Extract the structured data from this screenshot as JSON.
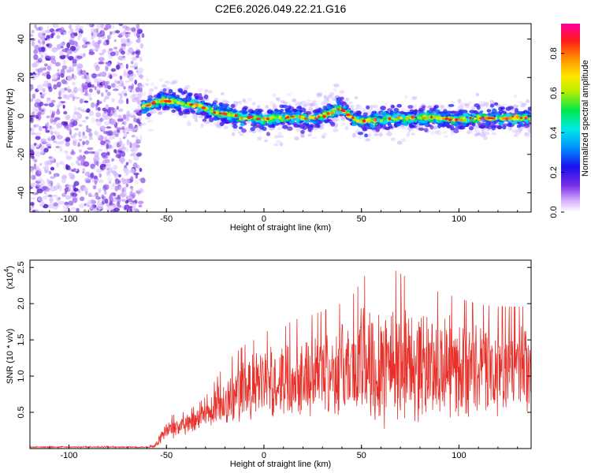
{
  "title": "C2E6.2026.049.22.21.G16",
  "chart_data": [
    {
      "type": "heatmap",
      "xlabel": "Height of straight line (km)",
      "ylabel": "Frequency (Hz)",
      "xlim": [
        -120,
        137
      ],
      "ylim": [
        -50,
        48
      ],
      "xticks": [
        -100,
        -50,
        0,
        50,
        100
      ],
      "xtick_labels": [
        "-100",
        "-50",
        "0",
        "50",
        "100"
      ],
      "yticks": [
        -40,
        -20,
        0,
        20,
        40
      ],
      "ytick_labels": [
        "-40",
        "-20",
        "0",
        "20",
        "40"
      ],
      "noise_region_x": [
        -120,
        -62
      ],
      "ridge": {
        "x": [
          -62,
          -55,
          -50,
          -45,
          -40,
          -35,
          -30,
          -25,
          -20,
          -15,
          -10,
          -5,
          0,
          5,
          10,
          15,
          20,
          25,
          30,
          35,
          38,
          42,
          45,
          50,
          55,
          60,
          70,
          80,
          90,
          100,
          110,
          120,
          130,
          137
        ],
        "y": [
          5,
          7,
          8,
          7,
          6,
          6,
          4,
          2,
          1,
          0,
          -1,
          -1,
          -2,
          -1,
          -1,
          0,
          -1,
          -1,
          0,
          2,
          4,
          2,
          -1,
          -3,
          -2,
          -2,
          -1,
          -1,
          -1,
          -2,
          -1,
          -1,
          -1,
          -1
        ]
      },
      "colorbar": {
        "label": "Normalized spectral amplitude",
        "ticks": [
          0.0,
          0.2,
          0.4,
          0.6,
          0.8
        ],
        "tick_labels": [
          "0.0",
          "0.2",
          "0.4",
          "0.6",
          "0.8"
        ],
        "range": [
          0,
          0.95
        ]
      }
    },
    {
      "type": "line",
      "xlabel": "Height of straight line (km)",
      "ylabel": "SNR (10 * v/v)",
      "scale_label": "(x10",
      "scale_exponent": "4",
      "scale_close": ")",
      "xlim": [
        -120,
        137
      ],
      "ylim": [
        0,
        2.6
      ],
      "xticks": [
        -100,
        -50,
        0,
        50,
        100
      ],
      "xtick_labels": [
        "-100",
        "-50",
        "0",
        "50",
        "100"
      ],
      "yticks": [
        0.5,
        1.0,
        1.5,
        2.0,
        2.5
      ],
      "ytick_labels": [
        "0.5",
        "1.0",
        "1.5",
        "2.0",
        "2.5"
      ],
      "series": [
        {
          "name": "SNR",
          "color": "#e8302a",
          "envelope": {
            "x": [
              -120,
              -60,
              -56,
              -53,
              -50,
              -45,
              -40,
              -35,
              -30,
              -25,
              -20,
              -15,
              -10,
              -5,
              0,
              5,
              10,
              15,
              20,
              30,
              40,
              45,
              50,
              55,
              60,
              70,
              80,
              90,
              100,
              110,
              120,
              130,
              137
            ],
            "mean": [
              0.02,
              0.02,
              0.03,
              0.15,
              0.25,
              0.28,
              0.32,
              0.36,
              0.45,
              0.55,
              0.65,
              0.72,
              0.78,
              0.85,
              0.9,
              0.92,
              0.95,
              1.0,
              1.02,
              1.05,
              1.1,
              1.12,
              1.15,
              1.2,
              1.22,
              1.18,
              1.15,
              1.12,
              1.1,
              1.08,
              1.05,
              1.05,
              1.05
            ],
            "spread": [
              0.01,
              0.01,
              0.02,
              0.1,
              0.15,
              0.15,
              0.15,
              0.18,
              0.2,
              0.3,
              0.4,
              0.45,
              0.5,
              0.5,
              0.55,
              0.55,
              0.55,
              0.6,
              0.6,
              0.65,
              0.7,
              0.75,
              0.9,
              1.0,
              1.05,
              0.95,
              0.85,
              0.8,
              0.75,
              0.7,
              0.7,
              0.7,
              0.7
            ]
          }
        }
      ]
    }
  ],
  "colors": {
    "line": "#e8302a",
    "axis": "#000000"
  }
}
